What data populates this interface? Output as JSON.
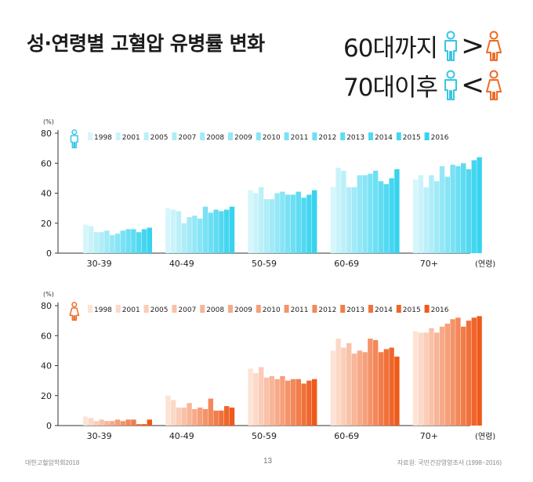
{
  "title": "성·연령별 고혈압 유병률 변화",
  "headline": {
    "line1_text": "60대까지",
    "line1_symbol": ">",
    "line2_text": "70대이후",
    "line2_symbol": "<"
  },
  "footer": {
    "left": "대한고혈압학회2018",
    "page": "13",
    "right": "자료원: 국민건강영양조사 (1998~2016)"
  },
  "colors": {
    "male_light": "#d6f6fb",
    "male_dark": "#37d3ef",
    "female_light": "#fde3d6",
    "female_dark": "#ee5a1b",
    "male_icon": "#36c6e4",
    "female_icon": "#ee6a25",
    "text": "#1b1b1b"
  },
  "chart_data": [
    {
      "type": "bar",
      "group": "male",
      "icon": "male-icon",
      "ylabel": "(%)",
      "xlabel": "(연령)",
      "ylim": [
        0,
        80
      ],
      "yticks": [
        0,
        20,
        40,
        60,
        80
      ],
      "grid": false,
      "legend_position": "top",
      "categories": [
        "30-39",
        "40-49",
        "50-59",
        "60-69",
        "70+"
      ],
      "series": [
        {
          "name": "1998",
          "values": [
            19,
            30,
            42,
            44,
            49
          ]
        },
        {
          "name": "2001",
          "values": [
            18,
            29,
            40,
            57,
            52
          ]
        },
        {
          "name": "2005",
          "values": [
            14,
            28,
            44,
            55,
            44
          ]
        },
        {
          "name": "2007",
          "values": [
            14,
            20,
            36,
            44,
            52
          ]
        },
        {
          "name": "2008",
          "values": [
            15,
            24,
            36,
            44,
            48
          ]
        },
        {
          "name": "2009",
          "values": [
            12,
            25,
            40,
            52,
            58
          ]
        },
        {
          "name": "2010",
          "values": [
            13,
            23,
            41,
            52,
            51
          ]
        },
        {
          "name": "2011",
          "values": [
            15,
            31,
            39,
            53,
            59
          ]
        },
        {
          "name": "2012",
          "values": [
            16,
            27,
            39,
            55,
            58
          ]
        },
        {
          "name": "2013",
          "values": [
            16,
            29,
            41,
            48,
            60
          ]
        },
        {
          "name": "2014",
          "values": [
            14,
            28,
            37,
            46,
            56
          ]
        },
        {
          "name": "2015",
          "values": [
            16,
            29,
            39,
            50,
            62
          ]
        },
        {
          "name": "2016",
          "values": [
            17,
            31,
            42,
            56,
            64
          ]
        }
      ]
    },
    {
      "type": "bar",
      "group": "female",
      "icon": "female-icon",
      "ylabel": "(%)",
      "xlabel": "(연령)",
      "ylim": [
        0,
        80
      ],
      "yticks": [
        0,
        20,
        40,
        60,
        80
      ],
      "grid": false,
      "legend_position": "top",
      "categories": [
        "30-39",
        "40-49",
        "50-59",
        "60-69",
        "70+"
      ],
      "series": [
        {
          "name": "1998",
          "values": [
            6,
            20,
            38,
            50,
            63
          ]
        },
        {
          "name": "2001",
          "values": [
            5,
            17,
            35,
            58,
            62
          ]
        },
        {
          "name": "2005",
          "values": [
            3,
            12,
            39,
            52,
            62
          ]
        },
        {
          "name": "2007",
          "values": [
            4,
            12,
            32,
            55,
            65
          ]
        },
        {
          "name": "2008",
          "values": [
            3,
            15,
            33,
            48,
            62
          ]
        },
        {
          "name": "2009",
          "values": [
            3,
            11,
            31,
            50,
            66
          ]
        },
        {
          "name": "2010",
          "values": [
            4,
            12,
            33,
            49,
            68
          ]
        },
        {
          "name": "2011",
          "values": [
            3,
            11,
            30,
            58,
            71
          ]
        },
        {
          "name": "2012",
          "values": [
            4,
            18,
            31,
            57,
            72
          ]
        },
        {
          "name": "2013",
          "values": [
            4,
            10,
            31,
            49,
            66
          ]
        },
        {
          "name": "2014",
          "values": [
            1,
            10,
            28,
            51,
            70
          ]
        },
        {
          "name": "2015",
          "values": [
            1,
            13,
            30,
            52,
            72
          ]
        },
        {
          "name": "2016",
          "values": [
            4,
            12,
            31,
            46,
            73
          ]
        }
      ]
    }
  ]
}
